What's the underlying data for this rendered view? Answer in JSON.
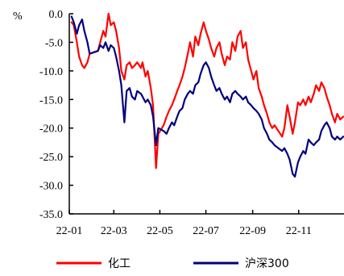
{
  "chart_data": {
    "type": "line",
    "unit": "%",
    "x_ticks": [
      "22-01",
      "22-03",
      "22-05",
      "22-07",
      "22-09",
      "22-11"
    ],
    "ylim": [
      -35,
      0
    ],
    "y_ticks": [
      "0.0",
      "-5.0",
      "-10.0",
      "-15.0",
      "-20.0",
      "-25.0",
      "-30.0",
      "-35.0"
    ],
    "y_tick_values": [
      0,
      -5,
      -10,
      -15,
      -20,
      -25,
      -30,
      -35
    ],
    "grid": false,
    "legend_position": "bottom",
    "series": [
      {
        "name": "化工",
        "color": "#ff0000",
        "points": [
          [
            "2022-01-04",
            -1.5
          ],
          [
            "2022-01-07",
            -2.0
          ],
          [
            "2022-01-11",
            -5.0
          ],
          [
            "2022-01-14",
            -7.5
          ],
          [
            "2022-01-18",
            -9.0
          ],
          [
            "2022-01-21",
            -9.5
          ],
          [
            "2022-01-25",
            -8.5
          ],
          [
            "2022-01-28",
            -7.0
          ],
          [
            "2022-02-08",
            -6.5
          ],
          [
            "2022-02-11",
            -5.0
          ],
          [
            "2022-02-15",
            -3.0
          ],
          [
            "2022-02-18",
            -4.0
          ],
          [
            "2022-02-22",
            0.0
          ],
          [
            "2022-02-25",
            -2.0
          ],
          [
            "2022-03-01",
            -1.5
          ],
          [
            "2022-03-04",
            -3.0
          ],
          [
            "2022-03-08",
            -6.0
          ],
          [
            "2022-03-11",
            -10.0
          ],
          [
            "2022-03-15",
            -11.5
          ],
          [
            "2022-03-18",
            -9.0
          ],
          [
            "2022-03-22",
            -8.5
          ],
          [
            "2022-03-25",
            -9.5
          ],
          [
            "2022-03-29",
            -9.0
          ],
          [
            "2022-04-01",
            -8.5
          ],
          [
            "2022-04-06",
            -9.5
          ],
          [
            "2022-04-08",
            -8.5
          ],
          [
            "2022-04-12",
            -11.0
          ],
          [
            "2022-04-15",
            -10.0
          ],
          [
            "2022-04-19",
            -13.0
          ],
          [
            "2022-04-22",
            -16.0
          ],
          [
            "2022-04-26",
            -27.0
          ],
          [
            "2022-04-29",
            -21.0
          ],
          [
            "2022-05-06",
            -19.5
          ],
          [
            "2022-05-10",
            -18.0
          ],
          [
            "2022-05-13",
            -17.0
          ],
          [
            "2022-05-17",
            -16.0
          ],
          [
            "2022-05-20",
            -15.0
          ],
          [
            "2022-05-24",
            -13.5
          ],
          [
            "2022-05-27",
            -12.5
          ],
          [
            "2022-05-31",
            -11.0
          ],
          [
            "2022-06-03",
            -9.5
          ],
          [
            "2022-06-07",
            -7.0
          ],
          [
            "2022-06-10",
            -5.0
          ],
          [
            "2022-06-14",
            -7.5
          ],
          [
            "2022-06-17",
            -4.0
          ],
          [
            "2022-06-21",
            -5.5
          ],
          [
            "2022-06-24",
            -3.5
          ],
          [
            "2022-06-28",
            -1.5
          ],
          [
            "2022-07-01",
            -3.0
          ],
          [
            "2022-07-05",
            -4.5
          ],
          [
            "2022-07-08",
            -6.0
          ],
          [
            "2022-07-12",
            -7.5
          ],
          [
            "2022-07-15",
            -6.0
          ],
          [
            "2022-07-19",
            -5.0
          ],
          [
            "2022-07-22",
            -7.0
          ],
          [
            "2022-07-26",
            -9.0
          ],
          [
            "2022-07-29",
            -7.5
          ],
          [
            "2022-08-02",
            -8.0
          ],
          [
            "2022-08-05",
            -5.0
          ],
          [
            "2022-08-09",
            -6.5
          ],
          [
            "2022-08-12",
            -4.0
          ],
          [
            "2022-08-16",
            -3.0
          ],
          [
            "2022-08-19",
            -6.0
          ],
          [
            "2022-08-23",
            -5.0
          ],
          [
            "2022-08-26",
            -8.0
          ],
          [
            "2022-08-30",
            -10.0
          ],
          [
            "2022-09-02",
            -11.5
          ],
          [
            "2022-09-06",
            -10.0
          ],
          [
            "2022-09-09",
            -13.0
          ],
          [
            "2022-09-13",
            -14.5
          ],
          [
            "2022-09-16",
            -16.0
          ],
          [
            "2022-09-20",
            -17.5
          ],
          [
            "2022-09-23",
            -19.0
          ],
          [
            "2022-09-27",
            -20.0
          ],
          [
            "2022-09-30",
            -19.5
          ],
          [
            "2022-10-10",
            -21.5
          ],
          [
            "2022-10-13",
            -20.0
          ],
          [
            "2022-10-17",
            -16.0
          ],
          [
            "2022-10-20",
            -18.0
          ],
          [
            "2022-10-24",
            -21.0
          ],
          [
            "2022-10-27",
            -19.0
          ],
          [
            "2022-10-31",
            -15.5
          ],
          [
            "2022-11-03",
            -16.0
          ],
          [
            "2022-11-07",
            -15.0
          ],
          [
            "2022-11-10",
            -16.0
          ],
          [
            "2022-11-14",
            -14.5
          ],
          [
            "2022-11-17",
            -15.5
          ],
          [
            "2022-11-21",
            -14.0
          ],
          [
            "2022-11-24",
            -12.5
          ],
          [
            "2022-11-28",
            -13.5
          ],
          [
            "2022-12-01",
            -12.0
          ],
          [
            "2022-12-05",
            -13.0
          ],
          [
            "2022-12-08",
            -14.5
          ],
          [
            "2022-12-12",
            -16.0
          ],
          [
            "2022-12-15",
            -17.5
          ],
          [
            "2022-12-19",
            -19.0
          ],
          [
            "2022-12-22",
            -17.5
          ],
          [
            "2022-12-26",
            -18.5
          ],
          [
            "2022-12-30",
            -18.0
          ]
        ]
      },
      {
        "name": "沪深300",
        "color": "#000080",
        "points": [
          [
            "2022-01-04",
            -0.5
          ],
          [
            "2022-01-07",
            -1.5
          ],
          [
            "2022-01-11",
            -3.5
          ],
          [
            "2022-01-14",
            -2.0
          ],
          [
            "2022-01-18",
            -1.0
          ],
          [
            "2022-01-21",
            -3.0
          ],
          [
            "2022-01-25",
            -5.0
          ],
          [
            "2022-01-28",
            -7.0
          ],
          [
            "2022-02-08",
            -6.5
          ],
          [
            "2022-02-11",
            -5.5
          ],
          [
            "2022-02-15",
            -6.0
          ],
          [
            "2022-02-18",
            -5.0
          ],
          [
            "2022-02-22",
            -6.5
          ],
          [
            "2022-02-25",
            -5.5
          ],
          [
            "2022-03-01",
            -6.0
          ],
          [
            "2022-03-04",
            -7.5
          ],
          [
            "2022-03-08",
            -10.0
          ],
          [
            "2022-03-11",
            -12.5
          ],
          [
            "2022-03-15",
            -19.0
          ],
          [
            "2022-03-18",
            -13.5
          ],
          [
            "2022-03-22",
            -13.0
          ],
          [
            "2022-03-25",
            -14.5
          ],
          [
            "2022-03-29",
            -15.0
          ],
          [
            "2022-04-01",
            -13.5
          ],
          [
            "2022-04-06",
            -14.0
          ],
          [
            "2022-04-08",
            -14.5
          ],
          [
            "2022-04-12",
            -15.5
          ],
          [
            "2022-04-15",
            -15.0
          ],
          [
            "2022-04-19",
            -16.0
          ],
          [
            "2022-04-22",
            -18.0
          ],
          [
            "2022-04-26",
            -23.0
          ],
          [
            "2022-04-29",
            -20.0
          ],
          [
            "2022-05-06",
            -20.5
          ],
          [
            "2022-05-10",
            -21.0
          ],
          [
            "2022-05-13",
            -20.0
          ],
          [
            "2022-05-17",
            -19.0
          ],
          [
            "2022-05-20",
            -19.5
          ],
          [
            "2022-05-24",
            -18.0
          ],
          [
            "2022-05-27",
            -17.0
          ],
          [
            "2022-05-31",
            -16.5
          ],
          [
            "2022-06-03",
            -15.0
          ],
          [
            "2022-06-07",
            -14.0
          ],
          [
            "2022-06-10",
            -13.5
          ],
          [
            "2022-06-14",
            -14.0
          ],
          [
            "2022-06-17",
            -12.5
          ],
          [
            "2022-06-21",
            -12.0
          ],
          [
            "2022-06-24",
            -10.5
          ],
          [
            "2022-06-28",
            -9.0
          ],
          [
            "2022-07-01",
            -8.5
          ],
          [
            "2022-07-05",
            -9.5
          ],
          [
            "2022-07-08",
            -11.0
          ],
          [
            "2022-07-12",
            -12.5
          ],
          [
            "2022-07-15",
            -13.5
          ],
          [
            "2022-07-19",
            -13.0
          ],
          [
            "2022-07-22",
            -14.0
          ],
          [
            "2022-07-26",
            -15.0
          ],
          [
            "2022-07-29",
            -14.5
          ],
          [
            "2022-08-02",
            -15.5
          ],
          [
            "2022-08-05",
            -14.0
          ],
          [
            "2022-08-09",
            -13.5
          ],
          [
            "2022-08-12",
            -14.0
          ],
          [
            "2022-08-16",
            -14.5
          ],
          [
            "2022-08-19",
            -15.0
          ],
          [
            "2022-08-23",
            -14.5
          ],
          [
            "2022-08-26",
            -15.5
          ],
          [
            "2022-08-30",
            -16.0
          ],
          [
            "2022-09-02",
            -16.5
          ],
          [
            "2022-09-06",
            -17.0
          ],
          [
            "2022-09-09",
            -17.5
          ],
          [
            "2022-09-13",
            -18.5
          ],
          [
            "2022-09-16",
            -20.0
          ],
          [
            "2022-09-20",
            -21.0
          ],
          [
            "2022-09-23",
            -22.0
          ],
          [
            "2022-09-27",
            -22.5
          ],
          [
            "2022-09-30",
            -23.0
          ],
          [
            "2022-10-10",
            -24.0
          ],
          [
            "2022-10-13",
            -23.5
          ],
          [
            "2022-10-17",
            -24.5
          ],
          [
            "2022-10-20",
            -25.5
          ],
          [
            "2022-10-24",
            -28.0
          ],
          [
            "2022-10-27",
            -28.5
          ],
          [
            "2022-10-31",
            -26.0
          ],
          [
            "2022-11-03",
            -25.0
          ],
          [
            "2022-11-07",
            -24.0
          ],
          [
            "2022-11-10",
            -24.5
          ],
          [
            "2022-11-14",
            -22.0
          ],
          [
            "2022-11-17",
            -22.5
          ],
          [
            "2022-11-21",
            -23.0
          ],
          [
            "2022-11-24",
            -22.5
          ],
          [
            "2022-11-28",
            -22.0
          ],
          [
            "2022-12-01",
            -20.5
          ],
          [
            "2022-12-05",
            -19.5
          ],
          [
            "2022-12-08",
            -19.0
          ],
          [
            "2022-12-12",
            -20.0
          ],
          [
            "2022-12-15",
            -21.5
          ],
          [
            "2022-12-19",
            -22.0
          ],
          [
            "2022-12-22",
            -21.5
          ],
          [
            "2022-12-26",
            -22.0
          ],
          [
            "2022-12-30",
            -21.5
          ]
        ]
      }
    ]
  }
}
